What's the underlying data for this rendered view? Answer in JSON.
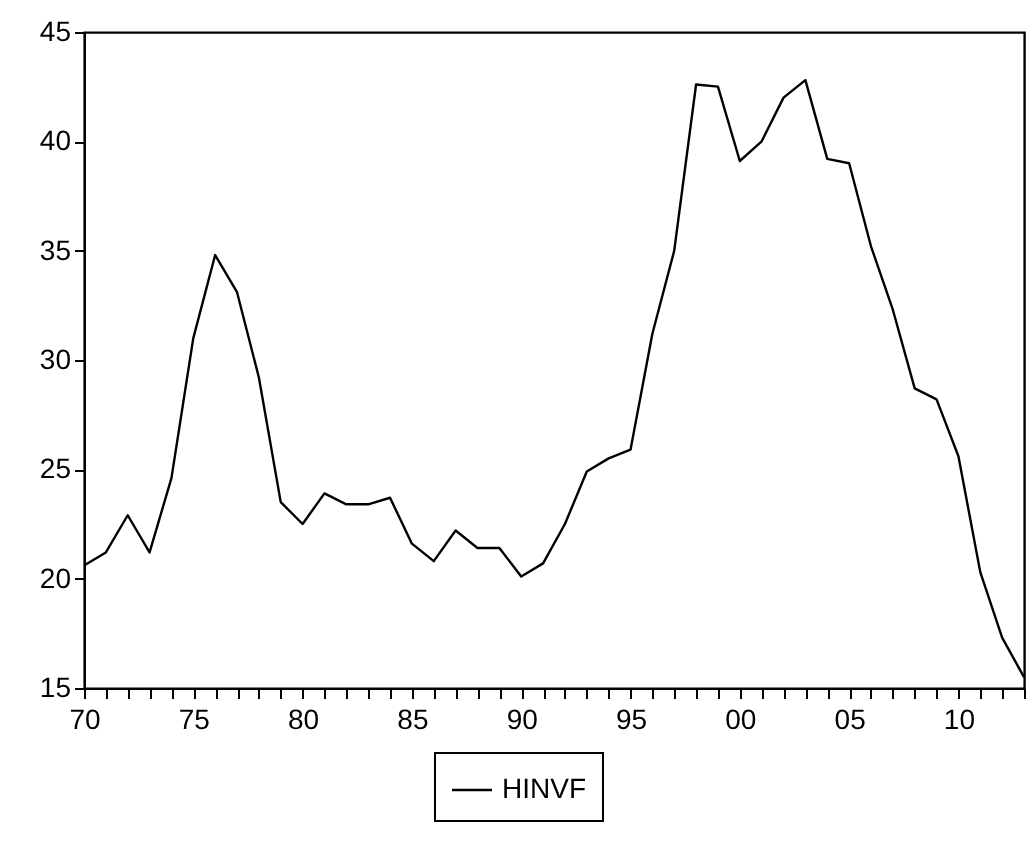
{
  "chart_data": {
    "type": "line",
    "x": [
      1970,
      1971,
      1972,
      1973,
      1974,
      1975,
      1976,
      1977,
      1978,
      1979,
      1980,
      1981,
      1982,
      1983,
      1984,
      1985,
      1986,
      1987,
      1988,
      1989,
      1990,
      1991,
      1992,
      1993,
      1994,
      1995,
      1996,
      1997,
      1998,
      1999,
      2000,
      2001,
      2002,
      2003,
      2004,
      2005,
      2006,
      2007,
      2008,
      2009,
      2010,
      2011,
      2012,
      2013
    ],
    "series": [
      {
        "name": "HINVF",
        "color": "#000000",
        "values": [
          20.6,
          21.2,
          22.9,
          21.2,
          24.6,
          31.0,
          34.8,
          33.1,
          29.2,
          23.5,
          22.5,
          23.9,
          23.4,
          23.4,
          23.7,
          21.6,
          20.8,
          22.2,
          21.4,
          21.4,
          20.1,
          20.7,
          22.5,
          24.9,
          25.5,
          25.9,
          31.2,
          35.0,
          42.6,
          42.5,
          39.1,
          40.0,
          42.0,
          42.8,
          39.2,
          39.0,
          35.2,
          32.3,
          28.7,
          28.2,
          25.6,
          20.3,
          17.3,
          15.5
        ]
      }
    ],
    "xlim": [
      1970,
      2013
    ],
    "xticks": [
      {
        "value": 1970,
        "label": "70"
      },
      {
        "value": 1971,
        "label": null
      },
      {
        "value": 1972,
        "label": null
      },
      {
        "value": 1973,
        "label": null
      },
      {
        "value": 1974,
        "label": null
      },
      {
        "value": 1975,
        "label": "75"
      },
      {
        "value": 1976,
        "label": null
      },
      {
        "value": 1977,
        "label": null
      },
      {
        "value": 1978,
        "label": null
      },
      {
        "value": 1979,
        "label": null
      },
      {
        "value": 1980,
        "label": "80"
      },
      {
        "value": 1981,
        "label": null
      },
      {
        "value": 1982,
        "label": null
      },
      {
        "value": 1983,
        "label": null
      },
      {
        "value": 1984,
        "label": null
      },
      {
        "value": 1985,
        "label": "85"
      },
      {
        "value": 1986,
        "label": null
      },
      {
        "value": 1987,
        "label": null
      },
      {
        "value": 1988,
        "label": null
      },
      {
        "value": 1989,
        "label": null
      },
      {
        "value": 1990,
        "label": "90"
      },
      {
        "value": 1991,
        "label": null
      },
      {
        "value": 1992,
        "label": null
      },
      {
        "value": 1993,
        "label": null
      },
      {
        "value": 1994,
        "label": null
      },
      {
        "value": 1995,
        "label": "95"
      },
      {
        "value": 1996,
        "label": null
      },
      {
        "value": 1997,
        "label": null
      },
      {
        "value": 1998,
        "label": null
      },
      {
        "value": 1999,
        "label": null
      },
      {
        "value": 2000,
        "label": "00"
      },
      {
        "value": 2001,
        "label": null
      },
      {
        "value": 2002,
        "label": null
      },
      {
        "value": 2003,
        "label": null
      },
      {
        "value": 2004,
        "label": null
      },
      {
        "value": 2005,
        "label": "05"
      },
      {
        "value": 2006,
        "label": null
      },
      {
        "value": 2007,
        "label": null
      },
      {
        "value": 2008,
        "label": null
      },
      {
        "value": 2009,
        "label": null
      },
      {
        "value": 2010,
        "label": "10"
      },
      {
        "value": 2011,
        "label": null
      },
      {
        "value": 2012,
        "label": null
      },
      {
        "value": 2013,
        "label": null
      }
    ],
    "ylim": [
      15,
      45
    ],
    "yticks": [
      15,
      20,
      25,
      30,
      35,
      40,
      45
    ],
    "grid": false,
    "legend": "bottom",
    "marker": "none",
    "line_style": "solid"
  }
}
